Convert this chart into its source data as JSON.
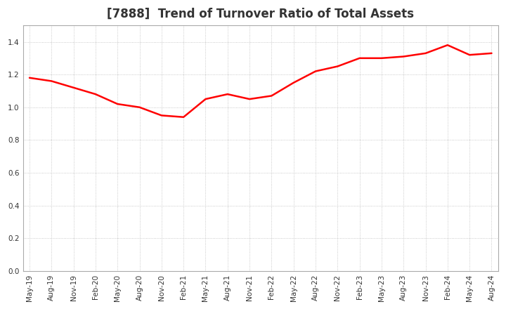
{
  "title": "[7888]  Trend of Turnover Ratio of Total Assets",
  "title_fontsize": 12,
  "title_color": "#333333",
  "line_color": "#FF0000",
  "line_width": 1.8,
  "background_color": "#FFFFFF",
  "plot_bg_color": "#FFFFFF",
  "grid_color": "#AAAAAA",
  "ylim": [
    0.0,
    1.5
  ],
  "yticks": [
    0.0,
    0.2,
    0.4,
    0.6,
    0.8,
    1.0,
    1.2,
    1.4
  ],
  "x_labels": [
    "May-19",
    "Aug-19",
    "Nov-19",
    "Feb-20",
    "May-20",
    "Aug-20",
    "Nov-20",
    "Feb-21",
    "May-21",
    "Aug-21",
    "Nov-21",
    "Feb-22",
    "May-22",
    "Aug-22",
    "Nov-22",
    "Feb-23",
    "May-23",
    "Aug-23",
    "Nov-23",
    "Feb-24",
    "May-24",
    "Aug-24"
  ],
  "values": [
    1.18,
    1.16,
    1.12,
    1.08,
    1.02,
    1.0,
    0.95,
    0.94,
    1.05,
    1.08,
    1.05,
    1.07,
    1.15,
    1.22,
    1.25,
    1.3,
    1.3,
    1.31,
    1.33,
    1.38,
    1.32,
    1.33
  ]
}
